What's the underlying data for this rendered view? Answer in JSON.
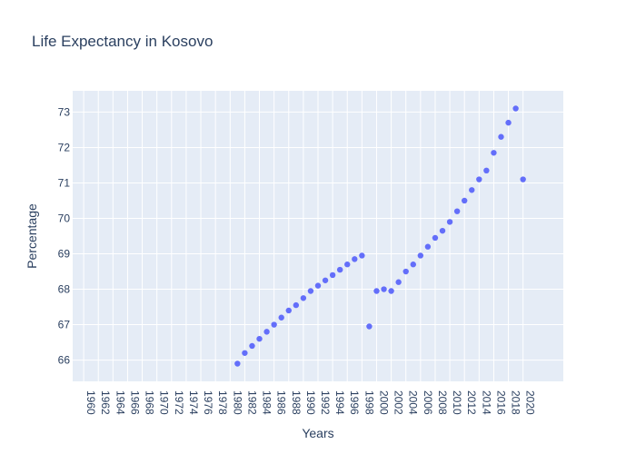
{
  "chart_data": {
    "type": "scatter",
    "title": "Life Expectancy in Kosovo",
    "xlabel": "Years",
    "ylabel": "Percentage",
    "xlim": [
      1958.5,
      2025.5
    ],
    "ylim": [
      65.4,
      73.6
    ],
    "x_ticks": [
      1960,
      1962,
      1964,
      1966,
      1968,
      1970,
      1972,
      1974,
      1976,
      1978,
      1980,
      1982,
      1984,
      1986,
      1988,
      1990,
      1992,
      1994,
      1996,
      1998,
      2000,
      2002,
      2004,
      2006,
      2008,
      2010,
      2012,
      2014,
      2016,
      2018,
      2020
    ],
    "y_ticks": [
      66,
      67,
      68,
      69,
      70,
      71,
      72,
      73
    ],
    "grid": true,
    "legend": "none",
    "colors": {
      "plot_bg": "#E5ECF6",
      "grid": "#ffffff",
      "marker": "#636EFA",
      "text": "#2a3f5f"
    },
    "series": [
      {
        "x": [
          1981,
          1982,
          1983,
          1984,
          1985,
          1986,
          1987,
          1988,
          1989,
          1990,
          1991,
          1992,
          1993,
          1994,
          1995,
          1996,
          1997,
          1998,
          1999,
          2000,
          2001,
          2002,
          2003,
          2004,
          2005,
          2006,
          2007,
          2008,
          2009,
          2010,
          2011,
          2012,
          2013,
          2014,
          2015,
          2016,
          2017,
          2018,
          2019,
          2020
        ],
        "y": [
          65.9,
          66.2,
          66.4,
          66.6,
          66.8,
          67.0,
          67.2,
          67.4,
          67.55,
          67.75,
          67.95,
          68.1,
          68.25,
          68.4,
          68.55,
          68.7,
          68.85,
          68.95,
          66.95,
          67.95,
          68.0,
          67.95,
          68.2,
          68.5,
          68.7,
          68.95,
          69.2,
          69.45,
          69.65,
          69.9,
          70.2,
          70.5,
          70.8,
          71.1,
          71.35,
          71.85,
          72.3,
          72.7,
          73.1,
          71.1
        ]
      }
    ]
  }
}
